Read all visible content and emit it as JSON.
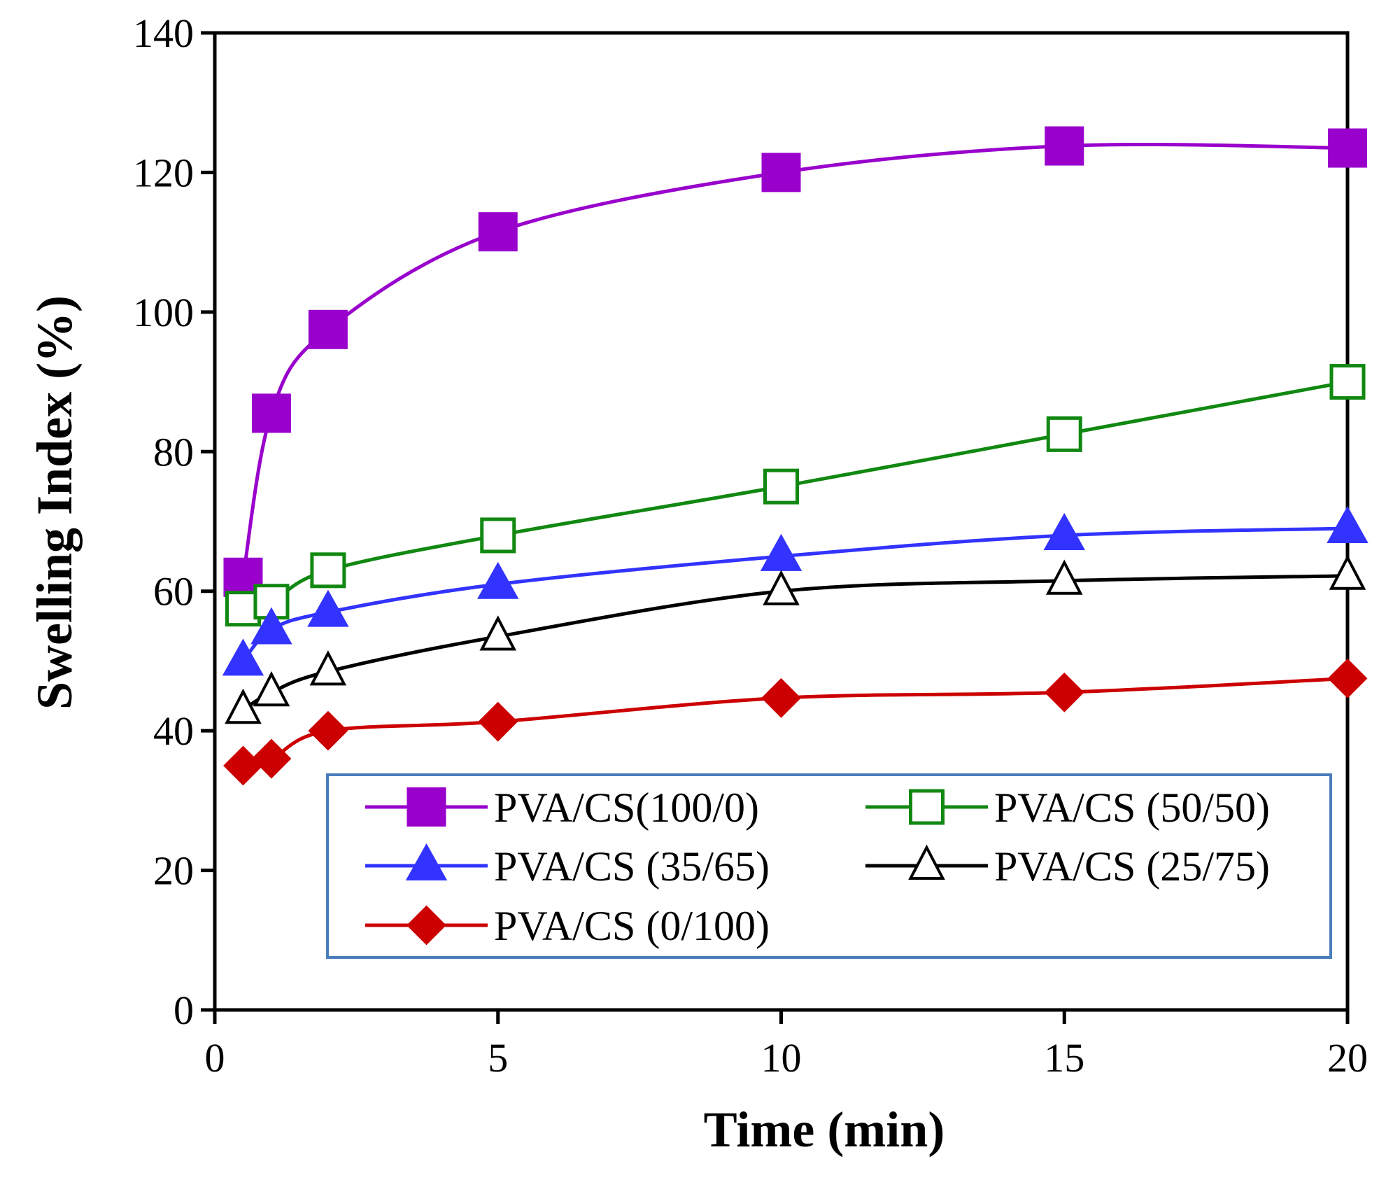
{
  "chart_data": {
    "type": "line",
    "title": "",
    "xlabel": "Time (min)",
    "ylabel": "Swelling Index (%)",
    "xlim": [
      0,
      20
    ],
    "ylim": [
      0,
      140
    ],
    "x_ticks": [
      0,
      5,
      10,
      15,
      20
    ],
    "y_ticks": [
      0,
      20,
      40,
      60,
      80,
      100,
      120,
      140
    ],
    "x_tick_labels": [
      "0",
      "5",
      "10",
      "15",
      "20"
    ],
    "y_tick_labels": [
      "0",
      "20",
      "40",
      "60",
      "80",
      "100",
      "120",
      "140"
    ],
    "grid": false,
    "legend_position": "bottom-right",
    "x": [
      0.5,
      1,
      2,
      5,
      10,
      15,
      20
    ],
    "series": [
      {
        "name": "PVA/CS(100/0)",
        "color": "#9900cc",
        "marker": "square-filled",
        "values": [
          62,
          85.5,
          97.5,
          111.5,
          120,
          123.8,
          123.5
        ]
      },
      {
        "name": "PVA/CS (50/50)",
        "color": "#118811",
        "marker": "square-open",
        "values": [
          57.5,
          58.5,
          63,
          68,
          75,
          82.5,
          90
        ]
      },
      {
        "name": "PVA/CS (35/65)",
        "color": "#3333ff",
        "marker": "triangle-filled",
        "values": [
          50,
          54.5,
          57,
          61,
          65,
          68,
          69
        ]
      },
      {
        "name": "PVA/CS (25/75)",
        "color": "#000000",
        "marker": "triangle-open",
        "values": [
          43,
          45.5,
          48.5,
          53.5,
          60,
          61.5,
          62.2
        ]
      },
      {
        "name": "PVA/CS (0/100)",
        "color": "#cc0000",
        "marker": "diamond-filled",
        "values": [
          35,
          36,
          40,
          41.3,
          44.7,
          45.5,
          47.5
        ]
      }
    ]
  }
}
